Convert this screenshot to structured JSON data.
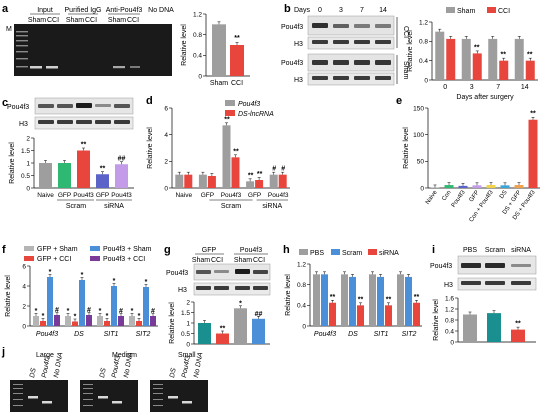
{
  "panel_letters": {
    "a": "a",
    "b": "b",
    "c": "c",
    "d": "d",
    "e": "e",
    "f": "f",
    "g": "g",
    "h": "h",
    "i": "i",
    "j": "j"
  },
  "common": {
    "relative_level": "Relative level",
    "h3": "H3",
    "pou4f3": "Pou4f3",
    "sig2": "**",
    "sig1": "*",
    "hash2": "##",
    "hash1": "#"
  },
  "a": {
    "m": "M",
    "lanes": [
      "Input",
      "Purified IgG",
      "Anti-Pou4f3",
      "No DNA"
    ],
    "sham": "Sham",
    "cci": "CCI"
  },
  "b": {
    "days_label": "Days",
    "days": [
      "0",
      "3",
      "7",
      "14"
    ],
    "cci_tag": "CCI",
    "sham_tag": "Sham",
    "x_title": "Days after surgery"
  },
  "c": {
    "scram": "Scram",
    "sirna": "siRNA",
    "naive": "Naive",
    "gfp": "GFP",
    "pou4f3": "Pou4f3"
  },
  "d": {
    "scram": "Scram",
    "sirna": "siRNA",
    "naive": "Naive",
    "gfp": "GFP",
    "pou4f3": "Pou4f3",
    "lnc": "DS-lncRNA"
  },
  "e": {
    "x": [
      "Naive",
      "Con",
      "Pou4f3",
      "GFP",
      "Con + Pou4f3",
      "DS",
      "DS + GFP",
      "DS + Pou4f3"
    ]
  },
  "f": {
    "groups": [
      "Pou4f3",
      "DS",
      "SIT1",
      "SIT2"
    ]
  },
  "g": {
    "gfp": "GFP",
    "pou4f3": "Pou4f3",
    "sham": "Sham",
    "cci": "CCI"
  },
  "h": {
    "groups": [
      "Pou4f3",
      "DS",
      "SIT1",
      "SIT2"
    ]
  },
  "i": {
    "cols": [
      "PBS",
      "Scram",
      "siRNA"
    ]
  },
  "j": {
    "large": "Large",
    "medium": "Medium",
    "small": "Small",
    "lanes": [
      "DS",
      "Pou4f3",
      "No DNA"
    ]
  },
  "chart_data": [
    {
      "panel": "a",
      "type": "bar",
      "categories": [
        "Sham",
        "CCI"
      ],
      "values": [
        1.0,
        0.6
      ],
      "ylim": [
        0,
        1.2
      ],
      "yticks": [
        0,
        0.4,
        0.8,
        1.2
      ],
      "ylabel": "Relative level",
      "colors": [
        "#9e9e9e",
        "#e8453c"
      ]
    },
    {
      "panel": "b",
      "type": "bar",
      "categories": [
        "0",
        "3",
        "7",
        "14"
      ],
      "series": [
        {
          "name": "Sham",
          "values": [
            1.0,
            0.85,
            0.85,
            0.85
          ]
        },
        {
          "name": "CCI",
          "values": [
            0.85,
            0.55,
            0.4,
            0.4
          ]
        }
      ],
      "ylim": [
        0,
        1.2
      ],
      "yticks": [
        0,
        0.4,
        0.8,
        1.2
      ],
      "ylabel": "Relative level",
      "xlabel": "Days after surgery",
      "colors": [
        "#9e9e9e",
        "#e8453c"
      ]
    },
    {
      "panel": "c",
      "type": "bar",
      "categories": [
        "Naive",
        "GFP",
        "Pou4f3",
        "GFP",
        "Pou4f3"
      ],
      "values": [
        1.0,
        1.0,
        1.5,
        0.55,
        0.95
      ],
      "ylim": [
        0,
        2.0
      ],
      "yticks": [
        0,
        0.5,
        1.0,
        1.5,
        2.0
      ],
      "ylabel": "Relative level",
      "colors": [
        "#9e9e9e",
        "#2eb872",
        "#e8453c",
        "#5b63c9",
        "#c39be8"
      ]
    },
    {
      "panel": "d",
      "type": "bar",
      "categories": [
        "Naive",
        "GFP",
        "Pou4f3",
        "GFP",
        "Pou4f3"
      ],
      "series": [
        {
          "name": "Pou4f3",
          "values": [
            1.0,
            1.0,
            4.7,
            0.5,
            1.0
          ]
        },
        {
          "name": "DS-lncRNA",
          "values": [
            1.0,
            0.9,
            2.3,
            0.6,
            1.0
          ]
        }
      ],
      "ylim": [
        0,
        6
      ],
      "yticks": [
        0,
        2,
        4,
        6
      ],
      "ylabel": "Relative level",
      "colors": [
        "#9e9e9e",
        "#e8453c"
      ]
    },
    {
      "panel": "e",
      "type": "bar",
      "categories": [
        "Naive",
        "Con",
        "Pou4f3",
        "GFP",
        "Con + Pou4f3",
        "DS",
        "DS + GFP",
        "DS + Pou4f3"
      ],
      "values": [
        1.0,
        5.5,
        4.0,
        5.0,
        5.5,
        5.0,
        5.5,
        128
      ],
      "ylim": [
        0,
        150
      ],
      "yticks": [
        0,
        50,
        100,
        150
      ],
      "ylabel": "Relative level",
      "colors": [
        "#9e9e9e",
        "#2eb872",
        "#5b63c9",
        "#c39be8",
        "#f0d24a",
        "#3aa5d8",
        "#f0a04a",
        "#e8453c"
      ]
    },
    {
      "panel": "f",
      "type": "bar",
      "categories": [
        "Pou4f3",
        "DS",
        "SIT1",
        "SIT2"
      ],
      "series": [
        {
          "name": "GFP + Sham",
          "values": [
            1.0,
            1.0,
            1.0,
            1.0
          ]
        },
        {
          "name": "GFP + CCI",
          "values": [
            0.5,
            0.45,
            0.5,
            0.5
          ]
        },
        {
          "name": "Pou4f3 + Sham",
          "values": [
            4.9,
            4.6,
            4.0,
            3.9
          ]
        },
        {
          "name": "Pou4f3 + CCI",
          "values": [
            1.1,
            1.1,
            1.0,
            1.0
          ]
        }
      ],
      "ylim": [
        0,
        6
      ],
      "yticks": [
        0,
        2,
        4,
        6
      ],
      "ylabel": "Relative level",
      "colors": [
        "#b5b5b5",
        "#e8453c",
        "#4a8fd8",
        "#7a3a9a"
      ]
    },
    {
      "panel": "g",
      "type": "bar",
      "categories": [
        "GFP Sham",
        "GFP CCI",
        "Pou4f3 Sham",
        "Pou4f3 CCI"
      ],
      "values": [
        1.0,
        0.5,
        1.7,
        1.2
      ],
      "ylim": [
        0,
        2.0
      ],
      "yticks": [
        0,
        0.5,
        1.0,
        1.5,
        2.0
      ],
      "ylabel": "Relative level",
      "colors": [
        "#1a8f8f",
        "#e8453c",
        "#9e9e9e",
        "#4a8fd8"
      ]
    },
    {
      "panel": "h",
      "type": "bar",
      "categories": [
        "Pou4f3",
        "DS",
        "SIT1",
        "SIT2"
      ],
      "series": [
        {
          "name": "PBS",
          "values": [
            1.0,
            1.0,
            1.0,
            1.0
          ]
        },
        {
          "name": "Scram",
          "values": [
            1.0,
            0.95,
            0.95,
            0.95
          ]
        },
        {
          "name": "siRNA",
          "values": [
            0.45,
            0.4,
            0.4,
            0.45
          ]
        }
      ],
      "ylim": [
        0,
        1.2
      ],
      "yticks": [
        0,
        0.4,
        0.8,
        1.2
      ],
      "ylabel": "Relative level",
      "colors": [
        "#9e9e9e",
        "#4a8fd8",
        "#e8453c"
      ]
    },
    {
      "panel": "i",
      "type": "bar",
      "categories": [
        "PBS",
        "Scram",
        "siRNA"
      ],
      "values": [
        1.0,
        1.05,
        0.45
      ],
      "ylim": [
        0,
        1.6
      ],
      "yticks": [
        0,
        0.4,
        0.8,
        1.2,
        1.6
      ],
      "ylabel": "Relative level",
      "colors": [
        "#9e9e9e",
        "#1a8f8f",
        "#e8453c"
      ]
    }
  ]
}
